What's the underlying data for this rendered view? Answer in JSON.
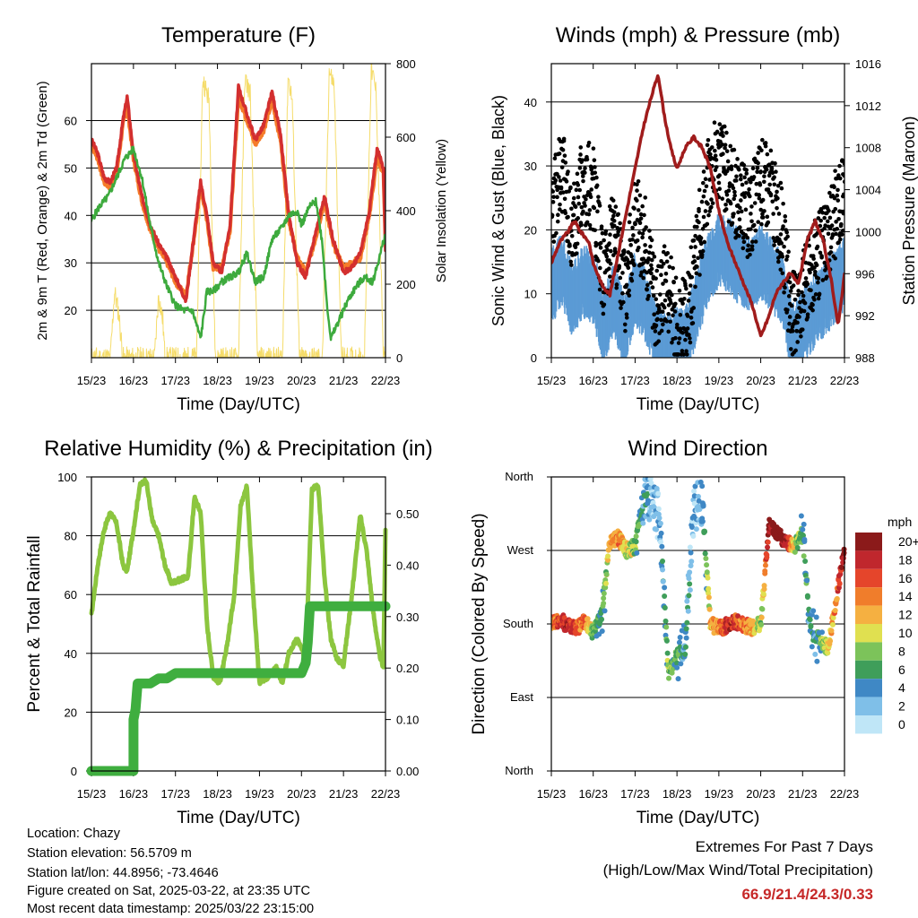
{
  "station": {
    "location": "Location: Chazy",
    "elevation": "Station elevation: 56.5709 m",
    "latlon": "Station lat/lon: 44.8956; -73.4646",
    "created": "Figure created on Sat, 2025-03-22, at 23:35 UTC",
    "latest": "Most recent data timestamp: 2025/03/22 23:15:00"
  },
  "extremes": {
    "heading": "Extremes For Past 7 Days",
    "subheading": "(High/Low/Max Wind/Total Precipitation)",
    "values": "66.9/21.4/24.3/0.33"
  },
  "colors": {
    "temp_2m": "#d32f2f",
    "temp_9m": "#f57c2a",
    "dewpoint": "#3daa3d",
    "solar": "#f5dc6a",
    "sonic_wind": "#5b9bd5",
    "gust": "#000000",
    "pressure": "#a01c1c",
    "rh": "#8cc63f",
    "rain": "#3fae3f",
    "wind_scale": [
      "#bfe6f7",
      "#7fbfe8",
      "#3f88c5",
      "#3f9e5a",
      "#7cc35a",
      "#e0e050",
      "#f5b041",
      "#f07d2b",
      "#e5452b",
      "#c0272d",
      "#8b1a1a"
    ]
  },
  "chart_data": [
    {
      "type": "line",
      "title": "Temperature (F)",
      "xlabel": "Time (Day/UTC)",
      "ylabel": "2m & 9m T (Red, Orange) & 2m Td (Green)",
      "ylabel_right": "Solar Insolation (Yellow)",
      "x_ticks": [
        "15/23",
        "16/23",
        "17/23",
        "18/23",
        "19/23",
        "20/23",
        "21/23",
        "22/23"
      ],
      "ylim": [
        10,
        72
      ],
      "y_ticks": [
        20,
        30,
        40,
        50,
        60
      ],
      "ylim_right": [
        0,
        800
      ],
      "y_ticks_right": [
        0,
        200,
        400,
        600,
        800
      ],
      "grid": true,
      "series": [
        {
          "name": "2m T",
          "axis": "left",
          "x": [
            0,
            0.15,
            0.3,
            0.45,
            0.6,
            0.75,
            0.85,
            1.0,
            1.2,
            1.4,
            1.6,
            1.8,
            2.0,
            2.25,
            2.5,
            2.6,
            2.75,
            2.9,
            3.1,
            3.3,
            3.5,
            3.75,
            3.9,
            4.1,
            4.3,
            4.5,
            4.7,
            4.9,
            5.1,
            5.3,
            5.55,
            5.75,
            6.0,
            6.2,
            6.4,
            6.6,
            6.8,
            6.95,
            7.0
          ],
          "values": [
            56,
            53,
            48,
            47,
            50,
            60,
            65,
            53,
            44,
            38,
            34,
            31,
            27,
            22,
            40,
            47,
            40,
            30,
            28,
            38,
            67,
            60,
            56,
            59,
            66,
            57,
            40,
            30,
            27,
            35,
            44,
            35,
            28,
            29,
            32,
            40,
            54,
            50,
            33
          ]
        },
        {
          "name": "9m T",
          "axis": "left",
          "x": [
            0,
            0.15,
            0.3,
            0.45,
            0.6,
            0.75,
            0.85,
            1.0,
            1.2,
            1.4,
            1.6,
            1.8,
            2.0,
            2.25,
            2.5,
            2.6,
            2.75,
            2.9,
            3.1,
            3.3,
            3.5,
            3.75,
            3.9,
            4.1,
            4.3,
            4.5,
            4.7,
            4.9,
            5.1,
            5.3,
            5.55,
            5.75,
            6.0,
            6.2,
            6.4,
            6.6,
            6.8,
            6.95,
            7.0
          ],
          "values": [
            55,
            52,
            47,
            46,
            49,
            59,
            63,
            52,
            43,
            37,
            33,
            30,
            26,
            23,
            39,
            46,
            39,
            29,
            29,
            37,
            65,
            59,
            55,
            58,
            64,
            56,
            39,
            31,
            28,
            34,
            43,
            34,
            29,
            30,
            31,
            39,
            52,
            49,
            34
          ]
        },
        {
          "name": "2m Td",
          "axis": "left",
          "x": [
            0,
            0.2,
            0.4,
            0.6,
            0.8,
            1.0,
            1.2,
            1.4,
            1.6,
            1.8,
            2.0,
            2.2,
            2.4,
            2.6,
            2.75,
            2.9,
            3.1,
            3.3,
            3.5,
            3.7,
            3.9,
            4.1,
            4.3,
            4.5,
            4.7,
            4.9,
            5.0,
            5.2,
            5.35,
            5.5,
            5.6,
            5.7,
            5.9,
            6.1,
            6.3,
            6.5,
            6.7,
            6.85,
            7.0
          ],
          "values": [
            39,
            42,
            44,
            48,
            52,
            54,
            48,
            38,
            30,
            25,
            21,
            20,
            20,
            14,
            24,
            24,
            26,
            27,
            28,
            32,
            26,
            27,
            35,
            37,
            40,
            41,
            38,
            42,
            43,
            34,
            22,
            14,
            18,
            22,
            25,
            27,
            26,
            31,
            36
          ]
        },
        {
          "name": "Solar Insolation",
          "axis": "right",
          "x": [
            0,
            0.45,
            0.55,
            0.65,
            0.75,
            1.0,
            1.5,
            1.6,
            1.7,
            1.75,
            2.0,
            2.5,
            2.65,
            2.8,
            2.95,
            3.2,
            3.5,
            3.65,
            3.78,
            3.95,
            4.3,
            4.55,
            4.68,
            4.78,
            4.95,
            5.3,
            5.5,
            5.66,
            5.78,
            5.95,
            6.3,
            6.5,
            6.66,
            6.78,
            6.95,
            7.0
          ],
          "values": [
            0,
            0,
            180,
            120,
            0,
            0,
            0,
            170,
            100,
            0,
            0,
            0,
            760,
            700,
            0,
            0,
            0,
            760,
            720,
            0,
            0,
            0,
            770,
            700,
            0,
            0,
            0,
            780,
            740,
            0,
            0,
            0,
            790,
            720,
            0,
            0
          ]
        }
      ]
    },
    {
      "type": "scatter",
      "title": "Winds (mph) & Pressure (mb)",
      "xlabel": "Time (Day/UTC)",
      "ylabel": "Sonic Wind & Gust (Blue, Black)",
      "ylabel_right": "Station Pressure (Maroon)",
      "x_ticks": [
        "15/23",
        "16/23",
        "17/23",
        "18/23",
        "19/23",
        "20/23",
        "21/23",
        "22/23"
      ],
      "ylim": [
        0,
        46
      ],
      "y_ticks": [
        0,
        10,
        20,
        30,
        40
      ],
      "ylim_right": [
        988,
        1016
      ],
      "y_ticks_right": [
        988,
        992,
        996,
        1000,
        1004,
        1008,
        1012,
        1016
      ],
      "grid": true,
      "series": [
        {
          "name": "Sonic Wind",
          "axis": "left",
          "x": [
            0,
            0.25,
            0.5,
            0.75,
            1.0,
            1.25,
            1.5,
            1.75,
            2.0,
            2.25,
            2.5,
            2.75,
            3.0,
            3.25,
            3.5,
            3.75,
            4.0,
            4.25,
            4.5,
            4.75,
            5.0,
            5.25,
            5.5,
            5.75,
            6.0,
            6.25,
            6.5,
            6.75,
            7.0
          ],
          "values": [
            12,
            15,
            10,
            13,
            12,
            6,
            10,
            5,
            12,
            9,
            4,
            2,
            3,
            4,
            10,
            15,
            18,
            17,
            15,
            14,
            16,
            14,
            12,
            4,
            6,
            8,
            10,
            12,
            14
          ]
        },
        {
          "name": "Gust",
          "axis": "left",
          "x": [
            0,
            0.25,
            0.5,
            0.75,
            1.0,
            1.25,
            1.5,
            1.75,
            2.0,
            2.25,
            2.5,
            2.75,
            3.0,
            3.25,
            3.5,
            3.75,
            4.0,
            4.25,
            4.5,
            4.75,
            5.0,
            5.25,
            5.5,
            5.75,
            6.0,
            6.25,
            6.5,
            6.75,
            7.0
          ],
          "values": [
            22,
            30,
            20,
            28,
            26,
            12,
            20,
            10,
            22,
            18,
            8,
            12,
            5,
            6,
            18,
            28,
            32,
            28,
            24,
            22,
            28,
            26,
            20,
            6,
            10,
            14,
            18,
            22,
            26
          ]
        },
        {
          "name": "Station Pressure",
          "axis": "right",
          "x": [
            0,
            0.2,
            0.4,
            0.55,
            0.7,
            0.9,
            1.0,
            1.2,
            1.4,
            1.6,
            1.8,
            2.0,
            2.2,
            2.4,
            2.55,
            2.7,
            2.85,
            3.0,
            3.2,
            3.4,
            3.6,
            3.8,
            4.0,
            4.2,
            4.4,
            4.6,
            4.8,
            5.0,
            5.2,
            5.35,
            5.5,
            5.7,
            5.9,
            6.1,
            6.3,
            6.5,
            6.7,
            6.85,
            7.0
          ],
          "values": [
            997,
            999,
            1000,
            1001,
            1000,
            999,
            997,
            995,
            994,
            998,
            1002,
            1006,
            1010,
            1013,
            1015,
            1011,
            1008,
            1006,
            1008,
            1009,
            1008,
            1006,
            1002,
            999,
            997,
            995,
            993,
            990,
            992,
            994,
            995,
            996,
            995,
            999,
            1001,
            999,
            995,
            991,
            996
          ]
        }
      ]
    },
    {
      "type": "line",
      "title": "Relative Humidity (%) & Precipitation (in)",
      "xlabel": "Time (Day/UTC)",
      "ylabel": "Percent & Total Rainfall",
      "x_ticks": [
        "15/23",
        "16/23",
        "17/23",
        "18/23",
        "19/23",
        "20/23",
        "21/23",
        "22/23"
      ],
      "ylim": [
        0,
        100
      ],
      "y_ticks": [
        0,
        20,
        40,
        60,
        80,
        100
      ],
      "ylim_right": [
        0,
        0.5714
      ],
      "y_ticks_right": [
        "0.00",
        "0.10",
        "0.20",
        "0.30",
        "0.40",
        "0.50"
      ],
      "grid": true,
      "series": [
        {
          "name": "RH",
          "axis": "left",
          "x": [
            0,
            0.15,
            0.3,
            0.45,
            0.6,
            0.75,
            0.85,
            1.0,
            1.15,
            1.3,
            1.45,
            1.6,
            1.75,
            1.9,
            2.1,
            2.3,
            2.45,
            2.6,
            2.75,
            2.9,
            3.05,
            3.2,
            3.4,
            3.55,
            3.7,
            3.85,
            4.0,
            4.2,
            4.4,
            4.55,
            4.7,
            4.9,
            5.1,
            5.25,
            5.4,
            5.55,
            5.7,
            5.85,
            6.0,
            6.2,
            6.4,
            6.55,
            6.7,
            6.85,
            6.95,
            7.0
          ],
          "values": [
            53,
            70,
            82,
            88,
            84,
            70,
            68,
            82,
            97,
            99,
            85,
            80,
            70,
            64,
            65,
            66,
            93,
            88,
            50,
            32,
            30,
            40,
            60,
            90,
            97,
            60,
            30,
            32,
            35,
            30,
            40,
            45,
            38,
            96,
            97,
            65,
            45,
            38,
            36,
            60,
            87,
            75,
            55,
            40,
            35,
            82
          ]
        },
        {
          "name": "Total Rainfall",
          "axis": "right",
          "x": [
            0,
            0.5,
            1.0,
            1.0,
            1.05,
            1.1,
            1.15,
            1.2,
            1.4,
            1.6,
            1.8,
            2.0,
            2.5,
            3.0,
            3.5,
            4.0,
            4.5,
            5.0,
            5.1,
            5.15,
            5.2,
            5.25,
            5.5,
            6.0,
            6.5,
            7.0
          ],
          "values": [
            0.0,
            0.0,
            0.0,
            0.1,
            0.12,
            0.17,
            0.17,
            0.17,
            0.17,
            0.18,
            0.18,
            0.19,
            0.19,
            0.19,
            0.19,
            0.19,
            0.19,
            0.19,
            0.21,
            0.25,
            0.32,
            0.32,
            0.32,
            0.32,
            0.32,
            0.32
          ]
        }
      ]
    },
    {
      "type": "scatter",
      "title": "Wind Direction",
      "xlabel": "Time (Day/UTC)",
      "ylabel": "Direction (Colored By Speed)",
      "x_ticks": [
        "15/23",
        "16/23",
        "17/23",
        "18/23",
        "19/23",
        "20/23",
        "21/23",
        "22/23"
      ],
      "y_ticks": [
        "North",
        "East",
        "South",
        "West",
        "North"
      ],
      "ylim": [
        0,
        360
      ],
      "grid": true,
      "legend": {
        "title": "mph",
        "labels": [
          "20+",
          "18",
          "16",
          "14",
          "12",
          "10",
          "8",
          "6",
          "4",
          "2",
          "0"
        ],
        "placement": "right"
      },
      "series": [
        {
          "name": "Wind Direction",
          "x": [
            0,
            0.2,
            0.4,
            0.6,
            0.8,
            1.0,
            1.2,
            1.4,
            1.6,
            1.8,
            2.0,
            2.2,
            2.4,
            2.6,
            2.8,
            3.0,
            3.2,
            3.4,
            3.6,
            3.8,
            4.0,
            4.2,
            4.4,
            4.6,
            4.8,
            5.0,
            5.2,
            5.4,
            5.6,
            5.8,
            6.0,
            6.2,
            6.4,
            6.6,
            6.8,
            7.0
          ],
          "values": [
            180,
            185,
            178,
            175,
            182,
            170,
            190,
            280,
            285,
            270,
            275,
            330,
            340,
            300,
            120,
            140,
            150,
            320,
            330,
            180,
            175,
            178,
            182,
            178,
            176,
            180,
            300,
            290,
            280,
            275,
            290,
            170,
            160,
            150,
            210,
            270
          ],
          "speeds": [
            14,
            16,
            18,
            16,
            14,
            8,
            4,
            12,
            14,
            10,
            8,
            4,
            2,
            2,
            8,
            6,
            4,
            2,
            2,
            12,
            14,
            18,
            16,
            14,
            12,
            8,
            20,
            22,
            20,
            10,
            6,
            4,
            6,
            10,
            14,
            20
          ]
        }
      ]
    }
  ]
}
